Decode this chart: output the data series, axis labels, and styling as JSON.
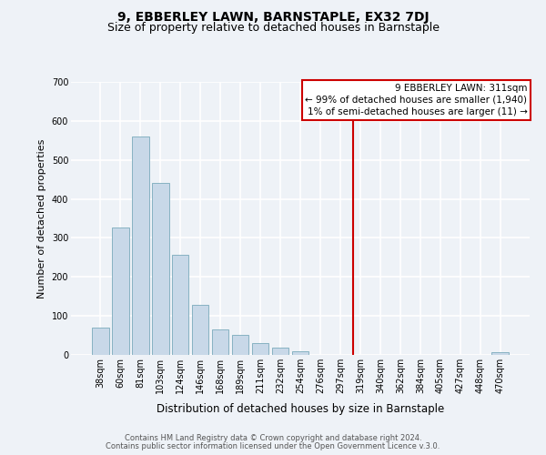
{
  "title": "9, EBBERLEY LAWN, BARNSTAPLE, EX32 7DJ",
  "subtitle": "Size of property relative to detached houses in Barnstaple",
  "xlabel": "Distribution of detached houses by size in Barnstaple",
  "ylabel": "Number of detached properties",
  "bar_labels": [
    "38sqm",
    "60sqm",
    "81sqm",
    "103sqm",
    "124sqm",
    "146sqm",
    "168sqm",
    "189sqm",
    "211sqm",
    "232sqm",
    "254sqm",
    "276sqm",
    "297sqm",
    "319sqm",
    "340sqm",
    "362sqm",
    "384sqm",
    "405sqm",
    "427sqm",
    "448sqm",
    "470sqm"
  ],
  "bar_values": [
    70,
    327,
    560,
    440,
    257,
    128,
    65,
    52,
    30,
    18,
    10,
    0,
    0,
    0,
    0,
    0,
    0,
    0,
    0,
    0,
    7
  ],
  "bar_color": "#c8d8e8",
  "bar_edgecolor": "#7aaabb",
  "ylim": [
    0,
    700
  ],
  "yticks": [
    0,
    100,
    200,
    300,
    400,
    500,
    600,
    700
  ],
  "vline_color": "#cc0000",
  "annotation_title": "9 EBBERLEY LAWN: 311sqm",
  "annotation_line1": "← 99% of detached houses are smaller (1,940)",
  "annotation_line2": "1% of semi-detached houses are larger (11) →",
  "annotation_box_color": "#cc0000",
  "footer1": "Contains HM Land Registry data © Crown copyright and database right 2024.",
  "footer2": "Contains public sector information licensed under the Open Government Licence v.3.0.",
  "bg_color": "#eef2f7",
  "grid_color": "#ffffff",
  "title_fontsize": 10,
  "subtitle_fontsize": 9,
  "xlabel_fontsize": 8.5,
  "ylabel_fontsize": 8,
  "tick_fontsize": 7,
  "footer_fontsize": 6,
  "annotation_fontsize": 7.5
}
